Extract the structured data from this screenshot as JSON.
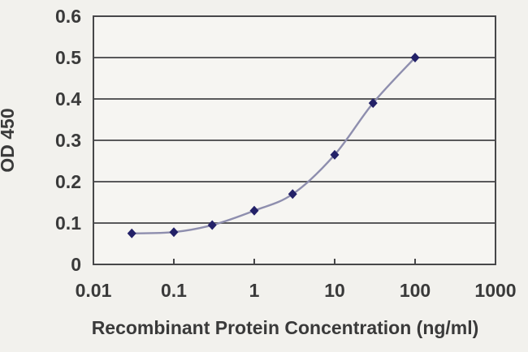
{
  "chart_data": {
    "type": "line",
    "title": "",
    "xlabel": "Recombinant Protein Concentration (ng/ml)",
    "ylabel": "OD 450",
    "x_scale": "log",
    "xlim": [
      0.01,
      1000
    ],
    "ylim": [
      0,
      0.6
    ],
    "x_ticks": [
      0.01,
      0.1,
      1,
      10,
      100,
      1000
    ],
    "x_tick_labels": [
      "0.01",
      "0.1",
      "1",
      "10",
      "100",
      "1000"
    ],
    "y_ticks": [
      0,
      0.1,
      0.2,
      0.3,
      0.4,
      0.5,
      0.6
    ],
    "y_tick_labels": [
      "0",
      "0.1",
      "0.2",
      "0.3",
      "0.4",
      "0.5",
      "0.6"
    ],
    "grid": "horizontal",
    "legend": "none",
    "series": [
      {
        "name": "OD 450",
        "x": [
          0.03,
          0.1,
          0.3,
          1,
          3,
          10,
          30,
          100
        ],
        "values": [
          0.075,
          0.078,
          0.095,
          0.13,
          0.17,
          0.265,
          0.39,
          0.5
        ],
        "marker": "diamond"
      }
    ],
    "colors": {
      "line": "#8e8eae",
      "marker": "#232168",
      "grid": "#59595b",
      "axis": "#474749",
      "text": "#3a3a3a",
      "plot_background": "#f6f5f2",
      "page_background": "#f2f1ed"
    }
  }
}
